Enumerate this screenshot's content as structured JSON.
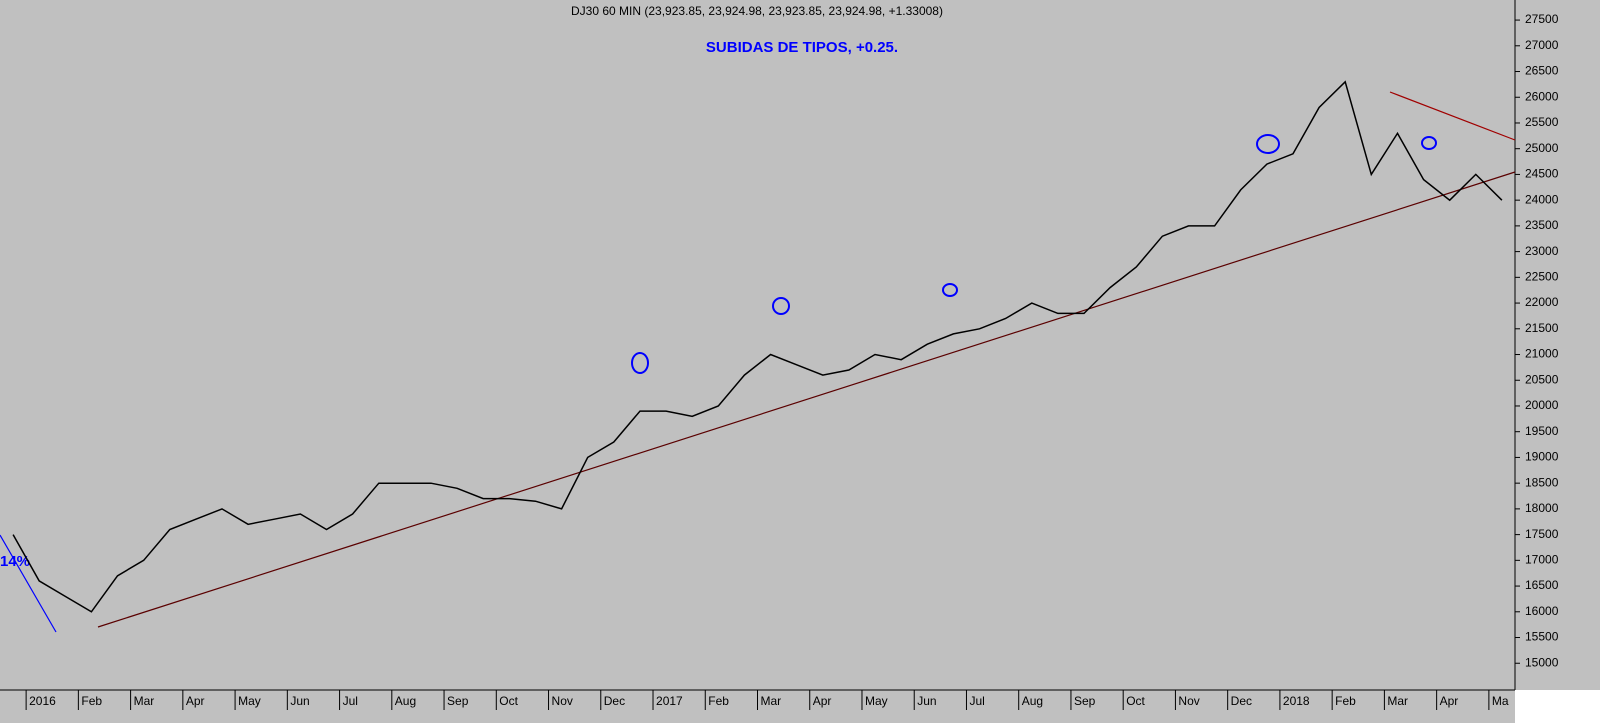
{
  "chart_data": {
    "type": "line",
    "title": "DJ30 60 MIN (23,923.85, 23,924.98, 23,923.85, 23,924.98, +1.33008)",
    "annotations": [
      "SUBIDAS DE TIPOS, +0.25.",
      "14%"
    ],
    "categories": [
      null,
      "2016",
      null,
      "Feb",
      null,
      "Mar",
      null,
      "Apr",
      null,
      "May",
      null,
      "Jun",
      null,
      "Jul",
      null,
      "Aug",
      null,
      "Sep",
      null,
      "Oct",
      null,
      "Nov",
      null,
      "Dec",
      null,
      "2017",
      null,
      "Feb",
      null,
      "Mar",
      null,
      "Apr",
      null,
      "May",
      null,
      "Jun",
      null,
      "Jul",
      null,
      "Aug",
      null,
      "Sep",
      null,
      "Oct",
      null,
      "Nov",
      null,
      "Dec",
      null,
      "2018",
      null,
      "Feb",
      null,
      "Mar",
      null,
      "Apr",
      null,
      "Ma"
    ],
    "values": [
      17500,
      16600,
      16300,
      16000,
      16700,
      17000,
      17600,
      17800,
      18000,
      17700,
      17800,
      17900,
      17600,
      17900,
      18500,
      18500,
      18500,
      18400,
      18200,
      18200,
      18150,
      18000,
      19000,
      19300,
      19900,
      19900,
      19800,
      20000,
      20600,
      21000,
      20800,
      20600,
      20700,
      21000,
      20900,
      21200,
      21400,
      21500,
      21700,
      22000,
      21800,
      21800,
      22300,
      22700,
      23300,
      23500,
      23500,
      24200,
      24700,
      24900,
      25800,
      26300,
      24500,
      25300,
      24400,
      24000,
      24500,
      24000
    ],
    "color": "#000000",
    "ylim": [
      14480,
      27890
    ],
    "yticks": [
      15000,
      15500,
      16000,
      16500,
      17000,
      17500,
      18000,
      18500,
      19000,
      19500,
      20000,
      20500,
      21000,
      21500,
      22000,
      22500,
      23000,
      23500,
      24000,
      24500,
      25000,
      25500,
      26000,
      26500,
      27000,
      27500
    ]
  }
}
